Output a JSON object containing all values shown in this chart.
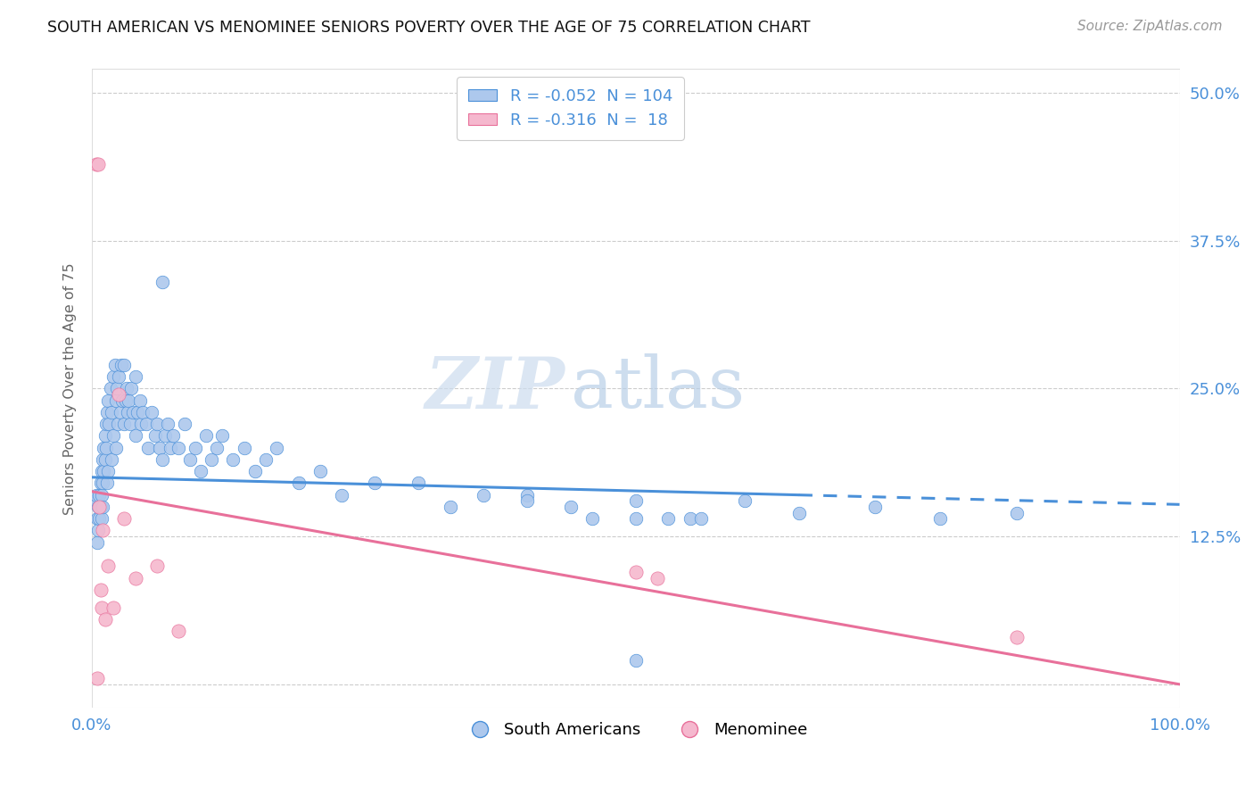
{
  "title": "SOUTH AMERICAN VS MENOMINEE SENIORS POVERTY OVER THE AGE OF 75 CORRELATION CHART",
  "source": "Source: ZipAtlas.com",
  "ylabel": "Seniors Poverty Over the Age of 75",
  "yticks": [
    0.0,
    0.125,
    0.25,
    0.375,
    0.5
  ],
  "ytick_labels": [
    "",
    "12.5%",
    "25.0%",
    "37.5%",
    "50.0%"
  ],
  "xlim": [
    0.0,
    1.0
  ],
  "ylim": [
    -0.02,
    0.52
  ],
  "legend_label1": "South Americans",
  "legend_label2": "Menominee",
  "blue_line_x": [
    0.0,
    1.0
  ],
  "blue_line_y": [
    0.175,
    0.152
  ],
  "blue_line_solid_end": 0.65,
  "pink_line_x": [
    0.0,
    1.0
  ],
  "pink_line_y": [
    0.163,
    0.0
  ],
  "blue_color": "#4a90d9",
  "blue_fill": "#adc8ed",
  "pink_color": "#e8709a",
  "pink_fill": "#f5b8ce",
  "watermark_zip": "ZIP",
  "watermark_atlas": "atlas",
  "background_color": "#ffffff",
  "grid_color": "#cccccc",
  "axis_color": "#4a90d9",
  "blue_scatter_x": [
    0.003,
    0.004,
    0.005,
    0.005,
    0.006,
    0.006,
    0.007,
    0.007,
    0.008,
    0.008,
    0.009,
    0.009,
    0.009,
    0.01,
    0.01,
    0.01,
    0.011,
    0.011,
    0.012,
    0.012,
    0.013,
    0.013,
    0.014,
    0.014,
    0.015,
    0.015,
    0.016,
    0.017,
    0.018,
    0.018,
    0.02,
    0.02,
    0.021,
    0.022,
    0.022,
    0.023,
    0.024,
    0.025,
    0.026,
    0.027,
    0.028,
    0.03,
    0.03,
    0.031,
    0.032,
    0.033,
    0.034,
    0.035,
    0.036,
    0.038,
    0.04,
    0.04,
    0.042,
    0.044,
    0.045,
    0.047,
    0.05,
    0.052,
    0.055,
    0.058,
    0.06,
    0.062,
    0.065,
    0.067,
    0.07,
    0.072,
    0.075,
    0.065,
    0.08,
    0.085,
    0.09,
    0.095,
    0.1,
    0.105,
    0.11,
    0.115,
    0.12,
    0.13,
    0.14,
    0.15,
    0.16,
    0.17,
    0.19,
    0.21,
    0.23,
    0.26,
    0.3,
    0.33,
    0.36,
    0.4,
    0.44,
    0.5,
    0.55,
    0.6,
    0.65,
    0.72,
    0.78,
    0.85,
    0.5,
    0.4,
    0.46,
    0.5,
    0.53,
    0.56
  ],
  "blue_scatter_y": [
    0.155,
    0.16,
    0.14,
    0.12,
    0.15,
    0.13,
    0.16,
    0.14,
    0.17,
    0.15,
    0.18,
    0.16,
    0.14,
    0.19,
    0.17,
    0.15,
    0.2,
    0.18,
    0.21,
    0.19,
    0.22,
    0.2,
    0.23,
    0.17,
    0.24,
    0.18,
    0.22,
    0.25,
    0.23,
    0.19,
    0.26,
    0.21,
    0.27,
    0.24,
    0.2,
    0.25,
    0.22,
    0.26,
    0.23,
    0.27,
    0.24,
    0.27,
    0.22,
    0.24,
    0.25,
    0.23,
    0.24,
    0.22,
    0.25,
    0.23,
    0.26,
    0.21,
    0.23,
    0.24,
    0.22,
    0.23,
    0.22,
    0.2,
    0.23,
    0.21,
    0.22,
    0.2,
    0.19,
    0.21,
    0.22,
    0.2,
    0.21,
    0.34,
    0.2,
    0.22,
    0.19,
    0.2,
    0.18,
    0.21,
    0.19,
    0.2,
    0.21,
    0.19,
    0.2,
    0.18,
    0.19,
    0.2,
    0.17,
    0.18,
    0.16,
    0.17,
    0.17,
    0.15,
    0.16,
    0.16,
    0.15,
    0.155,
    0.14,
    0.155,
    0.145,
    0.15,
    0.14,
    0.145,
    0.14,
    0.155,
    0.14,
    0.02,
    0.14,
    0.14
  ],
  "pink_scatter_x": [
    0.004,
    0.006,
    0.007,
    0.008,
    0.009,
    0.01,
    0.012,
    0.015,
    0.02,
    0.025,
    0.03,
    0.04,
    0.06,
    0.08,
    0.5,
    0.52,
    0.85,
    0.005
  ],
  "pink_scatter_y": [
    0.44,
    0.44,
    0.15,
    0.08,
    0.065,
    0.13,
    0.055,
    0.1,
    0.065,
    0.245,
    0.14,
    0.09,
    0.1,
    0.045,
    0.095,
    0.09,
    0.04,
    0.005
  ]
}
